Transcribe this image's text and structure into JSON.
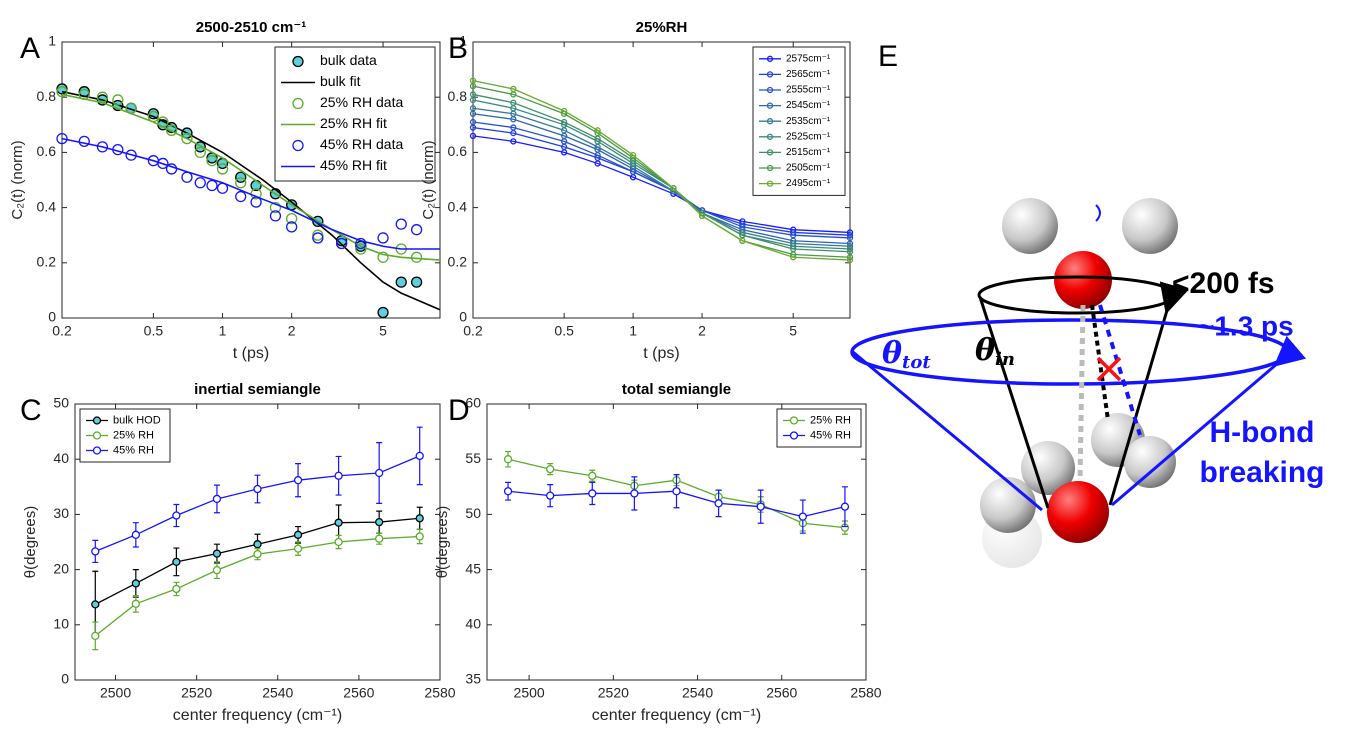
{
  "chart_data": [
    {
      "type": "scatter",
      "panel": "A",
      "title": "2500-2510 cm⁻¹",
      "xlabel": "t (ps)",
      "ylabel": "C₂(t) (norm)",
      "xscale": "log",
      "xlim": [
        0.2,
        8.85
      ],
      "ylim": [
        0,
        1
      ],
      "xticks": [
        0.2,
        0.5,
        1,
        2,
        5
      ],
      "yticks": [
        0,
        0.2,
        0.4,
        0.6,
        0.8,
        1
      ],
      "legend": "upper right",
      "series": [
        {
          "name": "bulk data",
          "mode": "markers",
          "color": "#000000",
          "fill": "#5fcfdc",
          "x": [
            0.2,
            0.25,
            0.3,
            0.35,
            0.4,
            0.5,
            0.55,
            0.6,
            0.7,
            0.8,
            0.9,
            1,
            1.2,
            1.4,
            1.7,
            2,
            2.6,
            3.3,
            4,
            5,
            6,
            7
          ],
          "values": [
            0.83,
            0.82,
            0.79,
            0.77,
            0.76,
            0.74,
            0.7,
            0.69,
            0.67,
            0.62,
            0.58,
            0.56,
            0.51,
            0.48,
            0.45,
            0.41,
            0.35,
            0.28,
            0.26,
            0.02,
            0.13,
            0.13
          ]
        },
        {
          "name": "bulk fit",
          "mode": "line",
          "color": "#000000",
          "x": [
            0.2,
            0.3,
            0.5,
            0.7,
            1,
            1.5,
            2,
            3,
            4,
            5,
            6,
            8.85
          ],
          "values": [
            0.82,
            0.79,
            0.73,
            0.67,
            0.6,
            0.5,
            0.42,
            0.3,
            0.2,
            0.13,
            0.09,
            0.03
          ]
        },
        {
          "name": "25% RH data",
          "mode": "markers",
          "color": "#5aac2a",
          "x": [
            0.2,
            0.25,
            0.3,
            0.35,
            0.4,
            0.5,
            0.55,
            0.6,
            0.7,
            0.8,
            0.9,
            1,
            1.2,
            1.4,
            1.7,
            2,
            2.6,
            3.3,
            4,
            5,
            6,
            7
          ],
          "values": [
            0.82,
            0.81,
            0.8,
            0.79,
            0.76,
            0.73,
            0.71,
            0.68,
            0.65,
            0.6,
            0.57,
            0.54,
            0.49,
            0.45,
            0.4,
            0.36,
            0.3,
            0.27,
            0.25,
            0.22,
            0.25,
            0.22
          ]
        },
        {
          "name": "25% RH fit",
          "mode": "line",
          "color": "#5aac2a",
          "x": [
            0.2,
            0.3,
            0.5,
            0.7,
            1,
            1.5,
            2,
            3,
            4,
            5,
            6,
            8.85
          ],
          "values": [
            0.81,
            0.78,
            0.71,
            0.65,
            0.58,
            0.48,
            0.41,
            0.32,
            0.26,
            0.23,
            0.22,
            0.21
          ]
        },
        {
          "name": "45% RH data",
          "mode": "markers",
          "color": "#1414ff",
          "x": [
            0.2,
            0.25,
            0.3,
            0.35,
            0.4,
            0.5,
            0.55,
            0.6,
            0.7,
            0.8,
            0.9,
            1,
            1.2,
            1.4,
            1.7,
            2,
            2.6,
            3.3,
            4,
            5,
            6,
            7
          ],
          "values": [
            0.65,
            0.64,
            0.62,
            0.61,
            0.59,
            0.57,
            0.56,
            0.54,
            0.51,
            0.49,
            0.48,
            0.47,
            0.44,
            0.42,
            0.37,
            0.33,
            0.29,
            0.27,
            0.27,
            0.29,
            0.34,
            0.32
          ]
        },
        {
          "name": "45% RH fit",
          "mode": "line",
          "color": "#1414ff",
          "x": [
            0.2,
            0.3,
            0.5,
            0.7,
            1,
            1.5,
            2,
            3,
            4,
            5,
            6,
            8.85
          ],
          "values": [
            0.65,
            0.62,
            0.57,
            0.53,
            0.49,
            0.43,
            0.39,
            0.32,
            0.28,
            0.26,
            0.25,
            0.25
          ]
        }
      ]
    },
    {
      "type": "scatter",
      "panel": "B",
      "title": "25%RH",
      "xlabel": "t (ps)",
      "ylabel": "C₂(t) (norm)",
      "xscale": "log",
      "xlim": [
        0.2,
        8.85
      ],
      "ylim": [
        0,
        1
      ],
      "xticks": [
        0.2,
        0.5,
        1,
        2,
        5
      ],
      "yticks": [
        0,
        0.2,
        0.4,
        0.6,
        0.8,
        1
      ],
      "legend": "upper right",
      "x": [
        0.2,
        0.3,
        0.5,
        0.7,
        1,
        1.5,
        2,
        3,
        5,
        8.85
      ],
      "series": [
        {
          "name": "2575cm⁻¹",
          "mode": "markers+line",
          "color": "#1a1aff",
          "values": [
            0.66,
            0.64,
            0.6,
            0.56,
            0.51,
            0.45,
            0.39,
            0.35,
            0.32,
            0.31
          ]
        },
        {
          "name": "2565cm⁻¹",
          "mode": "markers+line",
          "color": "#1f3fe0",
          "values": [
            0.69,
            0.67,
            0.62,
            0.58,
            0.53,
            0.46,
            0.39,
            0.34,
            0.31,
            0.3
          ]
        },
        {
          "name": "2555cm⁻¹",
          "mode": "markers+line",
          "color": "#2a52c8",
          "values": [
            0.71,
            0.69,
            0.64,
            0.59,
            0.53,
            0.46,
            0.39,
            0.33,
            0.3,
            0.29
          ]
        },
        {
          "name": "2545cm⁻¹",
          "mode": "markers+line",
          "color": "#2f66b0",
          "values": [
            0.74,
            0.72,
            0.66,
            0.61,
            0.54,
            0.46,
            0.38,
            0.32,
            0.28,
            0.27
          ]
        },
        {
          "name": "2535cm⁻¹",
          "mode": "markers+line",
          "color": "#357a98",
          "values": [
            0.76,
            0.74,
            0.68,
            0.62,
            0.55,
            0.46,
            0.38,
            0.31,
            0.27,
            0.26
          ]
        },
        {
          "name": "2525cm⁻¹",
          "mode": "markers+line",
          "color": "#3b8a80",
          "values": [
            0.79,
            0.76,
            0.7,
            0.64,
            0.56,
            0.47,
            0.38,
            0.3,
            0.26,
            0.25
          ]
        },
        {
          "name": "2515cm⁻¹",
          "mode": "markers+line",
          "color": "#3f8f66",
          "values": [
            0.81,
            0.78,
            0.71,
            0.65,
            0.57,
            0.47,
            0.38,
            0.3,
            0.25,
            0.24
          ]
        },
        {
          "name": "2505cm⁻¹",
          "mode": "markers+line",
          "color": "#4a994a",
          "values": [
            0.84,
            0.81,
            0.74,
            0.67,
            0.58,
            0.47,
            0.37,
            0.28,
            0.23,
            0.22
          ]
        },
        {
          "name": "2495cm⁻¹",
          "mode": "markers+line",
          "color": "#6aaa30",
          "values": [
            0.86,
            0.83,
            0.75,
            0.68,
            0.59,
            0.47,
            0.37,
            0.28,
            0.22,
            0.21
          ]
        }
      ]
    },
    {
      "type": "errorbar",
      "panel": "C",
      "title": "inertial semiangle",
      "xlabel": "center frequency (cm⁻¹)",
      "ylabel": "θ(degrees)",
      "xlim": [
        2490,
        2580
      ],
      "ylim": [
        0,
        50
      ],
      "xticks": [
        2500,
        2520,
        2540,
        2560,
        2580
      ],
      "yticks": [
        0,
        10,
        20,
        30,
        40,
        50
      ],
      "legend": "upper left",
      "x": [
        2495,
        2505,
        2515,
        2525,
        2535,
        2545,
        2555,
        2565,
        2575
      ],
      "series": [
        {
          "name": "bulk HOD",
          "mode": "markers+line",
          "color": "#000000",
          "fill": "#5fcfdc",
          "values": [
            13.7,
            17.5,
            21.4,
            22.9,
            24.6,
            26.3,
            28.5,
            28.6,
            29.3
          ],
          "errors": [
            6,
            2.5,
            2.5,
            1.7,
            1.8,
            1.5,
            3.2,
            2,
            2
          ]
        },
        {
          "name": "25% RH",
          "mode": "markers+line",
          "color": "#5aac2a",
          "values": [
            8.0,
            13.8,
            16.5,
            19.9,
            22.8,
            23.8,
            25.0,
            25.6,
            26.0
          ],
          "errors": [
            2.5,
            1.5,
            1.2,
            1.5,
            1,
            1.2,
            1.2,
            1,
            1.3
          ]
        },
        {
          "name": "45% RH",
          "mode": "markers+line",
          "color": "#1414ff",
          "values": [
            23.3,
            26.3,
            29.8,
            32.8,
            34.6,
            36.2,
            37.0,
            37.5,
            40.6
          ],
          "errors": [
            2,
            2.2,
            2,
            2.5,
            2.5,
            3,
            3.5,
            5.5,
            5.2
          ]
        }
      ]
    },
    {
      "type": "errorbar",
      "panel": "D",
      "title": "total semiangle",
      "xlabel": "center frequency (cm⁻¹)",
      "ylabel": "θ(degrees)",
      "xlim": [
        2490,
        2580
      ],
      "ylim": [
        35,
        60
      ],
      "xticks": [
        2500,
        2520,
        2540,
        2560,
        2580
      ],
      "yticks": [
        35,
        40,
        45,
        50,
        55,
        60
      ],
      "legend": "upper right",
      "x": [
        2495,
        2505,
        2515,
        2525,
        2535,
        2545,
        2555,
        2565,
        2575
      ],
      "series": [
        {
          "name": "25% RH",
          "mode": "markers+line",
          "color": "#5aac2a",
          "values": [
            55.0,
            54.1,
            53.5,
            52.6,
            53.1,
            51.6,
            50.9,
            49.2,
            48.8
          ],
          "errors": [
            0.7,
            0.5,
            0.5,
            0.5,
            0.5,
            0.6,
            0.7,
            0.7,
            0.6
          ]
        },
        {
          "name": "45% RH",
          "mode": "markers+line",
          "color": "#1414ff",
          "values": [
            52.1,
            51.7,
            51.9,
            51.9,
            52.1,
            51.0,
            50.7,
            49.8,
            50.7
          ],
          "errors": [
            0.8,
            1,
            1,
            1.5,
            1.5,
            1.2,
            1.5,
            1.5,
            1.8
          ]
        }
      ]
    }
  ],
  "diagram": {
    "label": "E",
    "fast_time": "<200 fs",
    "slow_time": "~1.3 ps",
    "theta": "θ",
    "tot": "tot",
    "in": "in",
    "hbond": [
      "H-bond",
      "breaking"
    ]
  }
}
